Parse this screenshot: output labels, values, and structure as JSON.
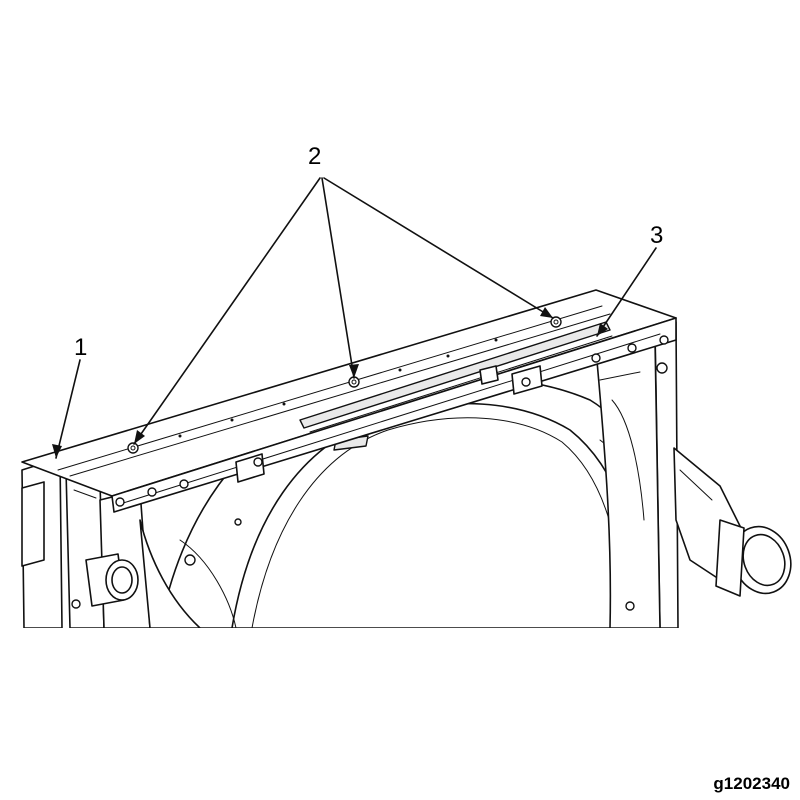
{
  "figure": {
    "id": "g1202340"
  },
  "callouts": [
    {
      "label": "1",
      "part": "radiator-support-side"
    },
    {
      "label": "2",
      "part": "upper-bolts"
    },
    {
      "label": "3",
      "part": "fan-shroud-upper-edge"
    }
  ],
  "colors": {
    "line": "#111111",
    "background": "#ffffff"
  }
}
